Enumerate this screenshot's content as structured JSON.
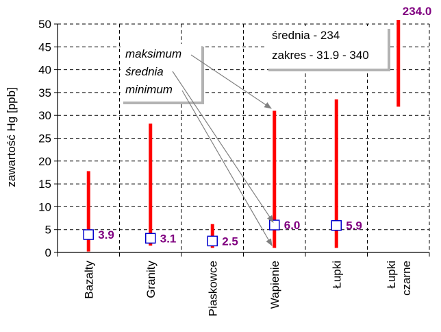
{
  "chart_data": {
    "type": "range",
    "ylabel": "zawartość Hg [ppb]",
    "ylim": [
      0,
      50
    ],
    "yticks": [
      0,
      5,
      10,
      15,
      20,
      25,
      30,
      35,
      40,
      45,
      50
    ],
    "categories": [
      [
        "Bazalty"
      ],
      [
        "Granity"
      ],
      [
        "Piaskowce"
      ],
      [
        "Wapienie"
      ],
      [
        "Łupki"
      ],
      [
        "Łupki",
        "czarne"
      ]
    ],
    "series": [
      {
        "min": 0.2,
        "max": 17.8,
        "mean": 3.9,
        "mean_label": "3.9"
      },
      {
        "min": 1.5,
        "max": 28.2,
        "mean": 3.1,
        "mean_label": "3.1"
      },
      {
        "min": 1.0,
        "max": 6.2,
        "mean": 2.5,
        "mean_label": "2.5"
      },
      {
        "min": 1.0,
        "max": 31.0,
        "mean": 6.0,
        "mean_label": "6.0"
      },
      {
        "min": 1.0,
        "max": 33.5,
        "mean": 5.9,
        "mean_label": "5.9"
      },
      {
        "min": 31.9,
        "max": 340,
        "mean": 234,
        "mean_label": "234.0",
        "clipped": true
      }
    ],
    "legend": {
      "lines": [
        "maksimum",
        "średnia",
        "minimum"
      ]
    },
    "annotation": {
      "lines": [
        "średnia - 234",
        "zakres - 31.9 - 340"
      ]
    },
    "grid": true,
    "colors": {
      "range_bar": "#ff0000",
      "mean_marker_stroke": "#0000cc",
      "mean_label": "#800080",
      "grid": "#000000",
      "arrow": "#808080"
    }
  }
}
